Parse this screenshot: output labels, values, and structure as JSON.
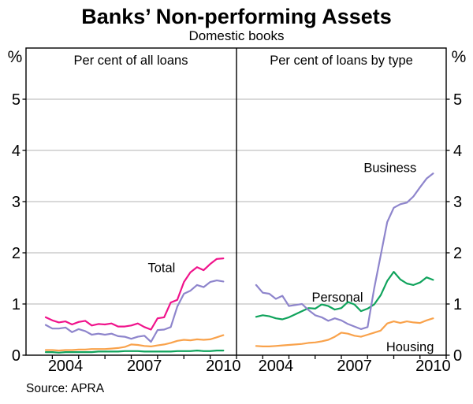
{
  "chart_data": {
    "type": "line",
    "title": "Banks’ Non-performing Assets",
    "subtitle": "Domestic books",
    "source": "Source: APRA",
    "unit_left": "%",
    "unit_right": "%",
    "x_start": 2003.75,
    "x_step": 0.25,
    "x_range": [
      2003,
      2011
    ],
    "ylim": [
      0,
      6
    ],
    "grid": "horizontal",
    "legend_position": "inline-labels",
    "yticks": [
      "0",
      "1",
      "2",
      "3",
      "4",
      "5"
    ],
    "xtick_labels": [
      "2004",
      "2007",
      "2010"
    ],
    "colors": {
      "total": "#F0138B",
      "business": "#8E85CC",
      "personal": "#10A35C",
      "housing": "#F9A24B",
      "gridline": "#b3b3b3",
      "axis": "#000000"
    },
    "panels": [
      {
        "title": "Per cent of all loans",
        "series": [
          {
            "name": "Housing",
            "color": "#F9A24B",
            "values": [
              0.1,
              0.1,
              0.09,
              0.1,
              0.1,
              0.11,
              0.11,
              0.12,
              0.12,
              0.12,
              0.13,
              0.14,
              0.16,
              0.21,
              0.2,
              0.18,
              0.17,
              0.19,
              0.21,
              0.24,
              0.28,
              0.3,
              0.29,
              0.31,
              0.3,
              0.31,
              0.35,
              0.39
            ]
          },
          {
            "name": "Personal",
            "color": "#10A35C",
            "values": [
              0.06,
              0.06,
              0.05,
              0.06,
              0.06,
              0.06,
              0.06,
              0.06,
              0.07,
              0.07,
              0.07,
              0.07,
              0.08,
              0.08,
              0.08,
              0.07,
              0.07,
              0.07,
              0.07,
              0.07,
              0.08,
              0.08,
              0.08,
              0.09,
              0.08,
              0.08,
              0.09,
              0.09
            ]
          },
          {
            "name": "Business",
            "color": "#8E85CC",
            "values": [
              0.59,
              0.52,
              0.52,
              0.54,
              0.45,
              0.51,
              0.47,
              0.4,
              0.42,
              0.4,
              0.42,
              0.37,
              0.36,
              0.32,
              0.36,
              0.38,
              0.26,
              0.49,
              0.5,
              0.55,
              0.95,
              1.2,
              1.26,
              1.37,
              1.33,
              1.43,
              1.46,
              1.44
            ]
          },
          {
            "name": "Total",
            "color": "#F0138B",
            "values": [
              0.74,
              0.68,
              0.64,
              0.66,
              0.6,
              0.65,
              0.67,
              0.58,
              0.61,
              0.6,
              0.62,
              0.56,
              0.56,
              0.58,
              0.62,
              0.55,
              0.5,
              0.72,
              0.74,
              1.03,
              1.08,
              1.43,
              1.62,
              1.72,
              1.66,
              1.78,
              1.88,
              1.89
            ],
            "label": {
              "text": "Total",
              "x": 2008.15,
              "v": 1.62
            }
          }
        ]
      },
      {
        "title": "Per cent of loans by type",
        "series": [
          {
            "name": "Housing",
            "color": "#F9A24B",
            "values": [
              0.18,
              0.17,
              0.17,
              0.18,
              0.19,
              0.2,
              0.21,
              0.22,
              0.24,
              0.25,
              0.27,
              0.3,
              0.36,
              0.44,
              0.42,
              0.38,
              0.36,
              0.4,
              0.44,
              0.48,
              0.62,
              0.66,
              0.63,
              0.66,
              0.64,
              0.63,
              0.68,
              0.72
            ],
            "label": {
              "text": "Housing",
              "x": 2009.62,
              "v": 0.08
            }
          },
          {
            "name": "Personal",
            "color": "#10A35C",
            "values": [
              0.75,
              0.78,
              0.76,
              0.72,
              0.7,
              0.74,
              0.8,
              0.86,
              0.92,
              0.91,
              0.99,
              0.96,
              0.89,
              0.92,
              1.04,
              0.99,
              0.86,
              0.91,
              0.99,
              1.17,
              1.45,
              1.63,
              1.48,
              1.4,
              1.37,
              1.42,
              1.52,
              1.47
            ],
            "label": {
              "text": "Personal",
              "x": 2006.85,
              "v": 1.05
            }
          },
          {
            "name": "Business",
            "color": "#8E85CC",
            "values": [
              1.37,
              1.22,
              1.2,
              1.1,
              1.16,
              0.96,
              0.98,
              1.0,
              0.88,
              0.78,
              0.74,
              0.67,
              0.72,
              0.68,
              0.61,
              0.56,
              0.51,
              0.55,
              1.3,
              1.95,
              2.6,
              2.88,
              2.95,
              2.98,
              3.1,
              3.28,
              3.45,
              3.55
            ],
            "label": {
              "text": "Business",
              "x": 2008.86,
              "v": 3.58
            }
          }
        ]
      }
    ]
  }
}
